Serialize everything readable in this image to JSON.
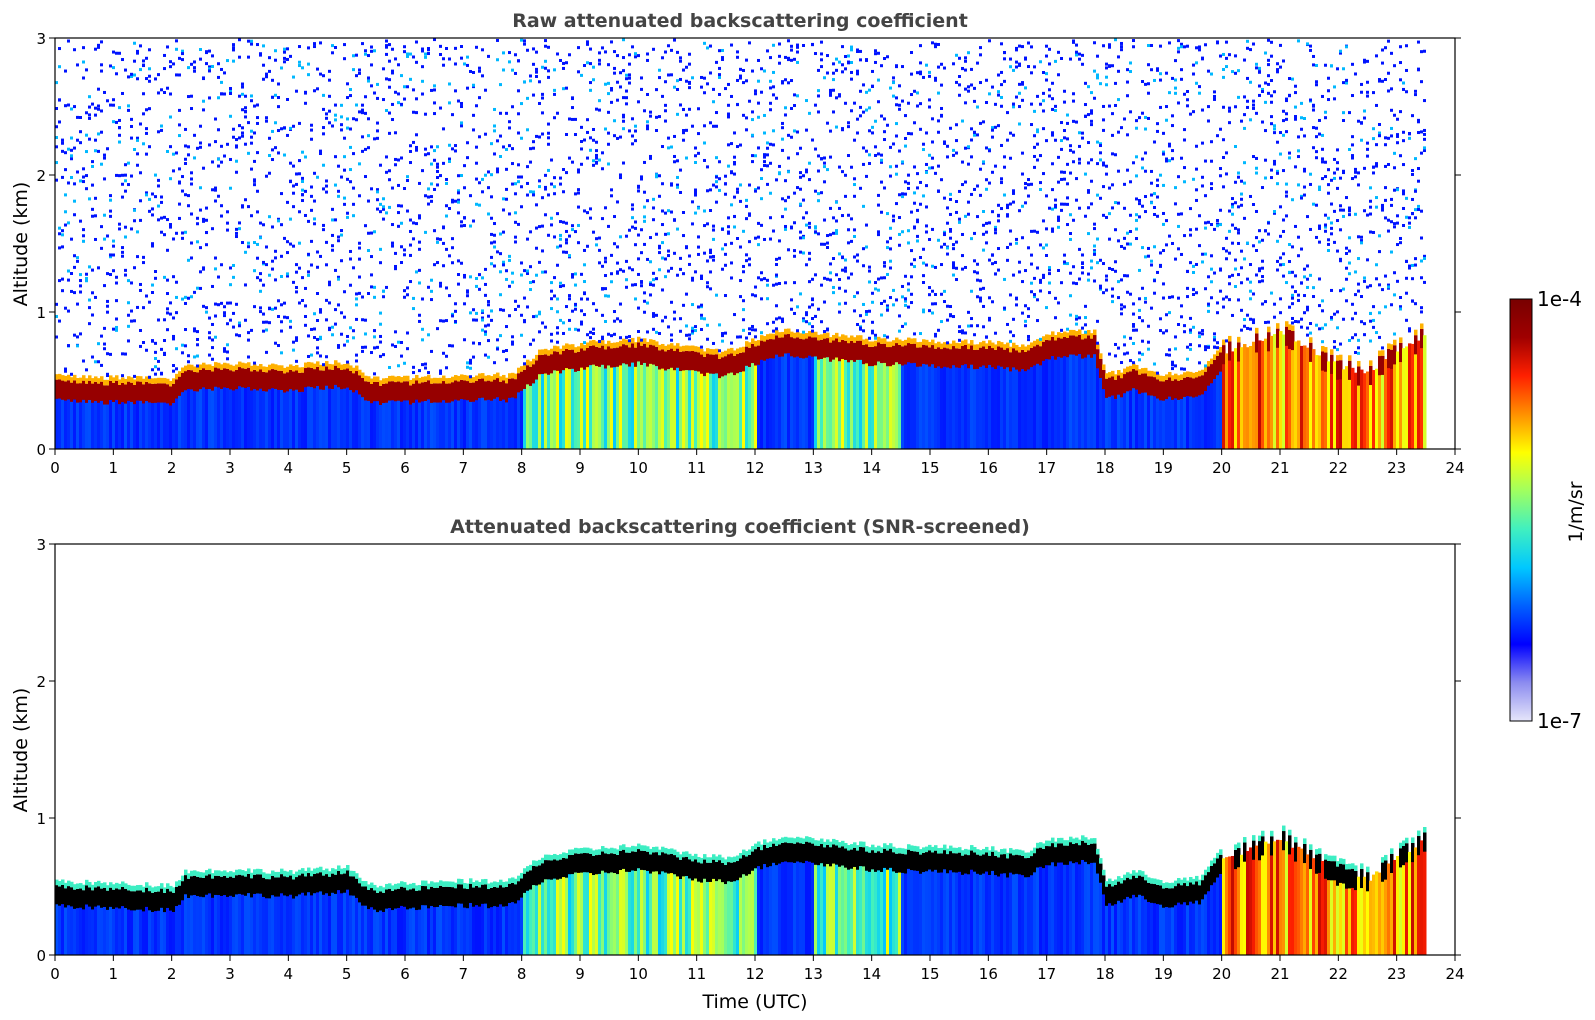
{
  "chart_data": [
    {
      "type": "heatmap",
      "title": "Raw attenuated backscattering coefficient",
      "xlabel": "",
      "ylabel": "Altitude (km)",
      "xlim": [
        0,
        24
      ],
      "ylim": [
        0,
        3
      ],
      "xticks": [
        "0",
        "1",
        "2",
        "3",
        "4",
        "5",
        "6",
        "7",
        "8",
        "9",
        "10",
        "11",
        "12",
        "13",
        "14",
        "15",
        "16",
        "17",
        "18",
        "19",
        "20",
        "21",
        "22",
        "23",
        "24"
      ],
      "yticks": [
        "0",
        "1",
        "2",
        "3"
      ],
      "data_end_time": 23.5,
      "noise": true,
      "boundary_layer_top_km": [
        [
          0,
          0.45
        ],
        [
          1,
          0.43
        ],
        [
          2,
          0.42
        ],
        [
          2.2,
          0.52
        ],
        [
          3,
          0.53
        ],
        [
          4,
          0.52
        ],
        [
          5,
          0.55
        ],
        [
          5.4,
          0.42
        ],
        [
          6,
          0.43
        ],
        [
          7,
          0.45
        ],
        [
          7.8,
          0.45
        ],
        [
          8.3,
          0.63
        ],
        [
          9,
          0.68
        ],
        [
          10,
          0.71
        ],
        [
          11,
          0.64
        ],
        [
          11.5,
          0.62
        ],
        [
          12,
          0.72
        ],
        [
          12.5,
          0.78
        ],
        [
          13,
          0.76
        ],
        [
          14,
          0.71
        ],
        [
          15,
          0.7
        ],
        [
          16,
          0.69
        ],
        [
          16.6,
          0.66
        ],
        [
          17,
          0.75
        ],
        [
          17.8,
          0.77
        ],
        [
          18,
          0.45
        ],
        [
          18.5,
          0.52
        ],
        [
          19,
          0.45
        ],
        [
          19.6,
          0.47
        ],
        [
          20,
          0.7
        ],
        [
          21,
          0.85
        ],
        [
          22,
          0.6
        ],
        [
          22.5,
          0.55
        ],
        [
          23,
          0.72
        ],
        [
          23.5,
          0.85
        ]
      ],
      "segments": [
        {
          "start": 0,
          "end": 8,
          "regime": "clear-air"
        },
        {
          "start": 8,
          "end": 12,
          "regime": "moderate"
        },
        {
          "start": 12,
          "end": 13,
          "regime": "clear-air"
        },
        {
          "start": 13,
          "end": 14.5,
          "regime": "moderate"
        },
        {
          "start": 14.5,
          "end": 20,
          "regime": "clear-air"
        },
        {
          "start": 20,
          "end": 23.5,
          "regime": "strong"
        }
      ]
    },
    {
      "type": "heatmap",
      "title": "Attenuated backscattering coefficient (SNR-screened)",
      "xlabel": "Time (UTC)",
      "ylabel": "Altitude (km)",
      "xlim": [
        0,
        24
      ],
      "ylim": [
        0,
        3
      ],
      "xticks": [
        "0",
        "1",
        "2",
        "3",
        "4",
        "5",
        "6",
        "7",
        "8",
        "9",
        "10",
        "11",
        "12",
        "13",
        "14",
        "15",
        "16",
        "17",
        "18",
        "19",
        "20",
        "21",
        "22",
        "23",
        "24"
      ],
      "yticks": [
        "0",
        "1",
        "2",
        "3"
      ],
      "data_end_time": 23.5,
      "noise": false,
      "same_field_as_panel": 0
    }
  ],
  "colorbar": {
    "label": "1/m/sr",
    "min_label": "1e-7",
    "max_label": "1e-4",
    "scale": "log",
    "stops": [
      "#e6e6fa",
      "#8c8cf0",
      "#0000ff",
      "#0060ff",
      "#00c8ff",
      "#40f0c0",
      "#a0ff60",
      "#ffff00",
      "#ff9000",
      "#ff2000",
      "#a00000",
      "#780000"
    ]
  }
}
